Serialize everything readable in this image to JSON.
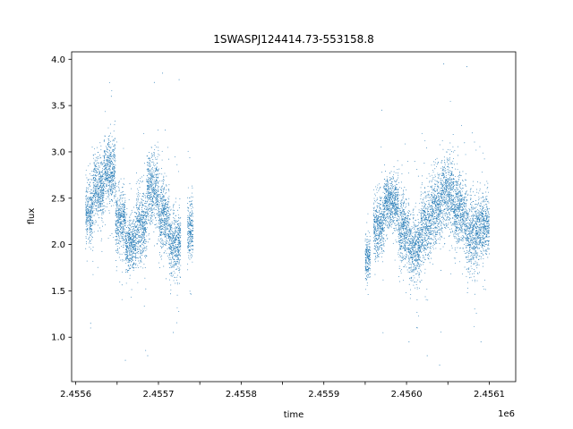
{
  "chart_data": {
    "type": "scatter",
    "title": "1SWASPJ124414.73-553158.8",
    "xlabel": "time",
    "ylabel": "flux",
    "x_offset_label": "1e6",
    "xlim": [
      2455595,
      2456132
    ],
    "ylim": [
      0.52,
      4.08
    ],
    "x_ticks": [
      2455600,
      2455650,
      2455700,
      2455750,
      2455800,
      2455850,
      2455900,
      2455950,
      2456000,
      2456050,
      2456100
    ],
    "x_tick_labels": [
      "2.4556",
      "",
      "2.4557",
      "",
      "2.4558",
      "",
      "2.4559",
      "",
      "2.4560",
      "",
      "2.4561"
    ],
    "y_ticks": [
      1.0,
      1.5,
      2.0,
      2.5,
      3.0,
      3.5,
      4.0
    ],
    "y_tick_labels": [
      "1.0",
      "1.5",
      "2.0",
      "2.5",
      "3.0",
      "3.5",
      "4.0"
    ],
    "grid": false,
    "marker_color": "#1f77b4",
    "series": [
      {
        "name": "",
        "segments": [
          {
            "x_start": 2455612,
            "x_end": 2455621,
            "mean": 2.35,
            "spread": 0.3
          },
          {
            "x_start": 2455621,
            "x_end": 2455634,
            "mean": 2.6,
            "spread": 0.3
          },
          {
            "x_start": 2455634,
            "x_end": 2455648,
            "mean": 2.8,
            "spread": 0.3
          },
          {
            "x_start": 2455648,
            "x_end": 2455660,
            "mean": 2.25,
            "spread": 0.3
          },
          {
            "x_start": 2455660,
            "x_end": 2455673,
            "mean": 2.0,
            "spread": 0.25
          },
          {
            "x_start": 2455673,
            "x_end": 2455686,
            "mean": 2.2,
            "spread": 0.35
          },
          {
            "x_start": 2455686,
            "x_end": 2455700,
            "mean": 2.6,
            "spread": 0.35
          },
          {
            "x_start": 2455700,
            "x_end": 2455713,
            "mean": 2.3,
            "spread": 0.35
          },
          {
            "x_start": 2455713,
            "x_end": 2455727,
            "mean": 2.0,
            "spread": 0.3
          },
          {
            "x_start": 2455735,
            "x_end": 2455742,
            "mean": 2.15,
            "spread": 0.3
          },
          {
            "x_start": 2455950,
            "x_end": 2455956,
            "mean": 1.85,
            "spread": 0.2
          },
          {
            "x_start": 2455960,
            "x_end": 2455973,
            "mean": 2.2,
            "spread": 0.3
          },
          {
            "x_start": 2455973,
            "x_end": 2455990,
            "mean": 2.45,
            "spread": 0.25
          },
          {
            "x_start": 2455990,
            "x_end": 2456003,
            "mean": 2.15,
            "spread": 0.35
          },
          {
            "x_start": 2456003,
            "x_end": 2456017,
            "mean": 1.95,
            "spread": 0.3
          },
          {
            "x_start": 2456017,
            "x_end": 2456030,
            "mean": 2.2,
            "spread": 0.35
          },
          {
            "x_start": 2456030,
            "x_end": 2456043,
            "mean": 2.4,
            "spread": 0.35
          },
          {
            "x_start": 2456043,
            "x_end": 2456057,
            "mean": 2.55,
            "spread": 0.35
          },
          {
            "x_start": 2456057,
            "x_end": 2456072,
            "mean": 2.35,
            "spread": 0.35
          },
          {
            "x_start": 2456072,
            "x_end": 2456087,
            "mean": 2.1,
            "spread": 0.35
          },
          {
            "x_start": 2456087,
            "x_end": 2456100,
            "mean": 2.2,
            "spread": 0.3
          }
        ],
        "outliers": [
          {
            "x": 2455618,
            "y": 1.15
          },
          {
            "x": 2455643,
            "y": 3.6
          },
          {
            "x": 2455660,
            "y": 0.75
          },
          {
            "x": 2455687,
            "y": 0.8
          },
          {
            "x": 2455695,
            "y": 3.75
          },
          {
            "x": 2455705,
            "y": 3.85
          },
          {
            "x": 2455718,
            "y": 1.05
          },
          {
            "x": 2455725,
            "y": 3.78
          },
          {
            "x": 2455970,
            "y": 3.45
          },
          {
            "x": 2456003,
            "y": 0.95
          },
          {
            "x": 2456013,
            "y": 1.1
          },
          {
            "x": 2456025,
            "y": 0.8
          },
          {
            "x": 2456040,
            "y": 0.7
          },
          {
            "x": 2456045,
            "y": 3.95
          },
          {
            "x": 2456073,
            "y": 3.92
          },
          {
            "x": 2456090,
            "y": 0.95
          }
        ]
      }
    ]
  }
}
